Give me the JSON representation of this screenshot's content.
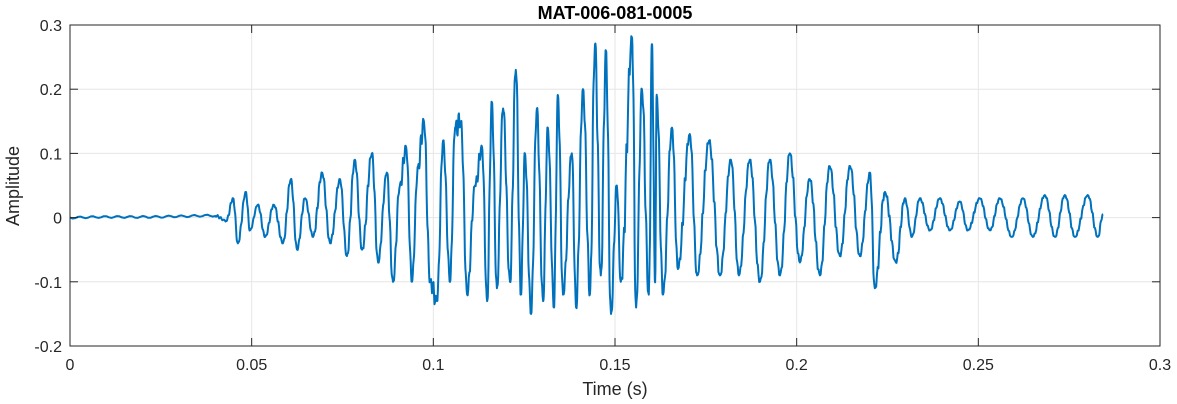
{
  "chart_data": {
    "type": "line",
    "title": "MAT-006-081-0005",
    "xlabel": "Time (s)",
    "ylabel": "Amplitude",
    "xlim": [
      0,
      0.3
    ],
    "ylim": [
      -0.2,
      0.3
    ],
    "xticks": [
      0,
      0.05,
      0.1,
      0.15,
      0.2,
      0.25,
      0.3
    ],
    "xtick_labels": [
      "0",
      "0.05",
      "0.1",
      "0.15",
      "0.2",
      "0.25",
      "0.3"
    ],
    "yticks": [
      -0.2,
      -0.1,
      0,
      0.1,
      0.2,
      0.3
    ],
    "ytick_labels": [
      "-0.2",
      "-0.1",
      "0",
      "0.1",
      "0.2",
      "0.3"
    ],
    "grid": true,
    "line_color": "#0072BD",
    "series": [
      {
        "x": [
          0,
          0.01,
          0.02,
          0.03,
          0.04,
          0.043,
          0.0449,
          0.0462,
          0.0484,
          0.0495,
          0.0517,
          0.0537,
          0.0561,
          0.0586,
          0.0608,
          0.0625,
          0.0647,
          0.0669,
          0.0694,
          0.0716,
          0.0743,
          0.0762,
          0.0784,
          0.0804,
          0.0831,
          0.0848,
          0.0872,
          0.0889,
          0.0908,
          0.0925,
          0.0941,
          0.0958,
          0.0974,
          0.0991,
          0.101,
          0.1027,
          0.1046,
          0.106,
          0.1076,
          0.1093,
          0.1115,
          0.1134,
          0.1148,
          0.1161,
          0.1175,
          0.1192,
          0.1211,
          0.1227,
          0.1241,
          0.1252,
          0.1269,
          0.1285,
          0.1302,
          0.1315,
          0.1332,
          0.1343,
          0.1357,
          0.1381,
          0.1393,
          0.1412,
          0.1431,
          0.1445,
          0.1461,
          0.1475,
          0.1489,
          0.1505,
          0.1516,
          0.1547,
          0.1558,
          0.1574,
          0.1593,
          0.1602,
          0.161,
          0.1615,
          0.1632,
          0.1657,
          0.1673,
          0.1706,
          0.1726,
          0.1759,
          0.1789,
          0.1819,
          0.1841,
          0.1871,
          0.1899,
          0.1926,
          0.1954,
          0.1981,
          0.2009,
          0.2036,
          0.2064,
          0.2091,
          0.2119,
          0.2147,
          0.2174,
          0.2202,
          0.2215,
          0.2243,
          0.2273,
          0.2298,
          0.2317,
          0.2339,
          0.2367,
          0.2394,
          0.2422,
          0.2449,
          0.2471,
          0.2504,
          0.2532,
          0.2559,
          0.2592,
          0.2623,
          0.265,
          0.2683,
          0.2711,
          0.2738,
          0.2766,
          0.2801,
          0.2829,
          0.2843
        ],
        "y": [
          0,
          0.001,
          0.001,
          0.002,
          0.003,
          -0.005,
          0.03,
          -0.04,
          0.04,
          -0.02,
          0.02,
          -0.03,
          0.02,
          -0.04,
          0.06,
          -0.05,
          0.03,
          -0.03,
          0.07,
          -0.04,
          0.06,
          -0.06,
          0.09,
          -0.05,
          0.1,
          -0.07,
          0.07,
          -0.1,
          0.05,
          0.11,
          -0.1,
          0.08,
          0.15,
          -0.1,
          -0.13,
          0.12,
          -0.1,
          0.14,
          0.15,
          -0.12,
          0.05,
          0.11,
          -0.13,
          0.18,
          -0.11,
          0.17,
          -0.1,
          0.23,
          -0.12,
          0.1,
          -0.15,
          0.17,
          -0.13,
          0.14,
          -0.14,
          0.19,
          -0.12,
          0.1,
          -0.14,
          0.2,
          -0.12,
          0.27,
          -0.09,
          0.26,
          -0.15,
          0.05,
          -0.1,
          0.28,
          -0.14,
          0.2,
          -0.12,
          0.27,
          -0.1,
          0.19,
          -0.12,
          0.14,
          -0.08,
          0.13,
          -0.09,
          0.12,
          -0.09,
          0.09,
          -0.09,
          0.09,
          -0.1,
          0.09,
          -0.09,
          0.1,
          -0.07,
          0.06,
          -0.09,
          0.08,
          -0.06,
          0.08,
          -0.06,
          0.07,
          -0.11,
          0.04,
          -0.07,
          0.03,
          -0.03,
          0.03,
          -0.02,
          0.03,
          -0.02,
          0.025,
          -0.02,
          0.03,
          -0.02,
          0.03,
          -0.03,
          0.03,
          -0.03,
          0.035,
          -0.03,
          0.035,
          -0.03,
          0.035,
          -0.03,
          0.005
        ]
      }
    ]
  }
}
